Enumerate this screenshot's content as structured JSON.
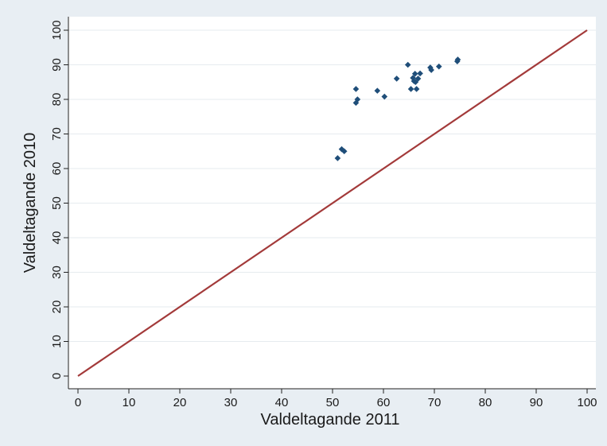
{
  "colors": {
    "outer_background": "#e8eef3",
    "plot_background": "#ffffff",
    "grid": "#e6ebef",
    "axis": "#222222",
    "markers": "#1f4e79",
    "reference_line": "#a33a3a"
  },
  "chart_data": {
    "type": "scatter",
    "title": "",
    "xlabel": "Valdeltagande 2011",
    "ylabel": "Valdeltagande 2010",
    "xlim": [
      0,
      100
    ],
    "ylim": [
      0,
      100
    ],
    "xticks": [
      "0",
      "10",
      "20",
      "30",
      "40",
      "50",
      "60",
      "70",
      "80",
      "90",
      "100"
    ],
    "yticks": [
      "0",
      "10",
      "20",
      "30",
      "40",
      "50",
      "60",
      "70",
      "80",
      "90",
      "100"
    ],
    "grid": "horizontal",
    "legend": "none",
    "reference_line": {
      "from": [
        0,
        0
      ],
      "to": [
        100,
        100
      ]
    },
    "series": [
      {
        "marker": "diamond",
        "points": [
          [
            51.0,
            63.0
          ],
          [
            51.8,
            65.6
          ],
          [
            52.3,
            65.0
          ],
          [
            54.6,
            83.0
          ],
          [
            54.6,
            79.0
          ],
          [
            54.9,
            80.0
          ],
          [
            58.8,
            82.5
          ],
          [
            60.2,
            80.8
          ],
          [
            62.6,
            86.0
          ],
          [
            64.8,
            90.0
          ],
          [
            65.4,
            83.0
          ],
          [
            65.8,
            86.2
          ],
          [
            66.0,
            85.3
          ],
          [
            66.2,
            87.4
          ],
          [
            66.3,
            85.0
          ],
          [
            66.5,
            83.0
          ],
          [
            66.8,
            86.0
          ],
          [
            67.2,
            87.5
          ],
          [
            69.2,
            89.2
          ],
          [
            69.4,
            88.5
          ],
          [
            70.9,
            89.5
          ],
          [
            74.5,
            91.0
          ],
          [
            74.6,
            91.5
          ]
        ]
      }
    ]
  }
}
